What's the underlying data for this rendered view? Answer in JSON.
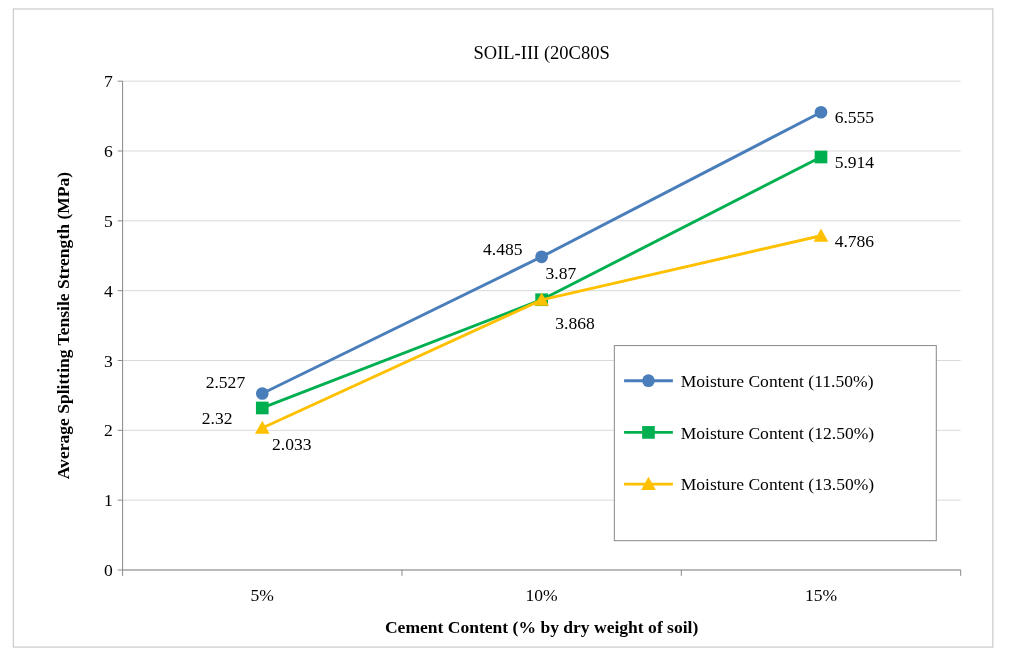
{
  "chart_data": {
    "type": "line",
    "title": "SOIL-III (20C80S",
    "xlabel": "Cement Content (% by dry weight of soil)",
    "ylabel": "Average Splitting Tensile Strength (MPa)",
    "categories": [
      "5%",
      "10%",
      "15%"
    ],
    "series": [
      {
        "name": "Moisture Content (11.50%)",
        "color": "#4a7ebb",
        "marker": "circle",
        "values": [
          2.527,
          4.485,
          6.555
        ]
      },
      {
        "name": "Moisture Content (12.50%)",
        "color": "#00b050",
        "marker": "square",
        "values": [
          2.32,
          3.87,
          5.914
        ]
      },
      {
        "name": "Moisture Content (13.50%)",
        "color": "#ffc000",
        "marker": "triangle",
        "values": [
          2.033,
          3.868,
          4.786
        ]
      }
    ],
    "ylim": [
      0,
      7
    ],
    "yticks": [
      0,
      1,
      2,
      3,
      4,
      5,
      6,
      7
    ],
    "grid": "y",
    "legend": "bottom right",
    "data_labels": true
  }
}
